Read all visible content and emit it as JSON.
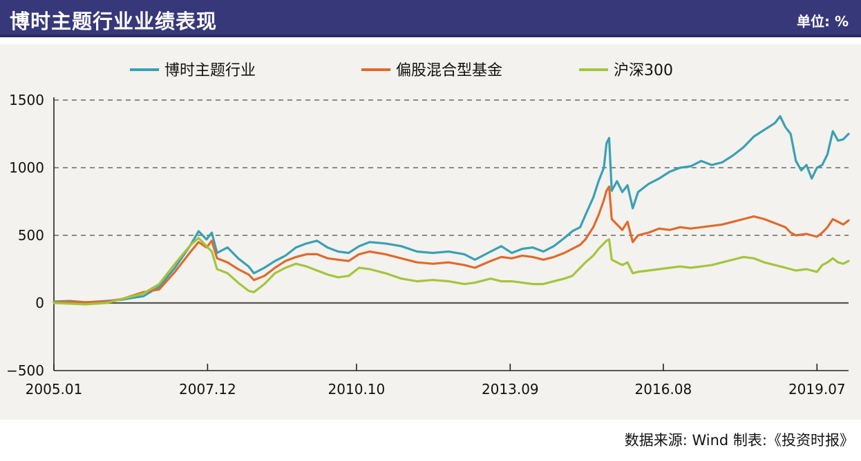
{
  "header": {
    "title": "博时主题行业业绩表现",
    "unit": "单位: %"
  },
  "footer": {
    "source": "数据来源: Wind  制表:《投资时报》"
  },
  "chart_data": {
    "type": "line",
    "title": "",
    "xlabel": "",
    "ylabel": "",
    "ylim": [
      -500,
      1500
    ],
    "yticks": [
      -500,
      0,
      500,
      1000,
      1500
    ],
    "xlim": [
      2005.0,
      2020.1
    ],
    "xticks": [
      {
        "label": "2005.01",
        "x": 2005.0
      },
      {
        "label": "2007.12",
        "x": 2007.92
      },
      {
        "label": "2010.10",
        "x": 2010.75
      },
      {
        "label": "2013.09",
        "x": 2013.67
      },
      {
        "label": "2016.08",
        "x": 2016.58
      },
      {
        "label": "2019.07",
        "x": 2019.5
      }
    ],
    "grid": "horizontal-dashed",
    "legend": "top",
    "series": [
      {
        "name": "博时主题行业",
        "color": "#3aa0b4",
        "points": [
          [
            2005.0,
            10
          ],
          [
            2005.3,
            15
          ],
          [
            2005.6,
            5
          ],
          [
            2006.0,
            15
          ],
          [
            2006.3,
            25
          ],
          [
            2006.7,
            50
          ],
          [
            2007.0,
            120
          ],
          [
            2007.3,
            260
          ],
          [
            2007.6,
            430
          ],
          [
            2007.75,
            530
          ],
          [
            2007.9,
            470
          ],
          [
            2008.0,
            520
          ],
          [
            2008.1,
            370
          ],
          [
            2008.3,
            410
          ],
          [
            2008.5,
            330
          ],
          [
            2008.7,
            270
          ],
          [
            2008.8,
            220
          ],
          [
            2009.0,
            260
          ],
          [
            2009.2,
            310
          ],
          [
            2009.4,
            350
          ],
          [
            2009.6,
            410
          ],
          [
            2009.8,
            440
          ],
          [
            2010.0,
            460
          ],
          [
            2010.2,
            410
          ],
          [
            2010.4,
            380
          ],
          [
            2010.6,
            370
          ],
          [
            2010.8,
            420
          ],
          [
            2011.0,
            450
          ],
          [
            2011.3,
            440
          ],
          [
            2011.6,
            420
          ],
          [
            2011.9,
            380
          ],
          [
            2012.2,
            370
          ],
          [
            2012.5,
            380
          ],
          [
            2012.8,
            360
          ],
          [
            2013.0,
            320
          ],
          [
            2013.3,
            380
          ],
          [
            2013.5,
            420
          ],
          [
            2013.7,
            370
          ],
          [
            2013.9,
            400
          ],
          [
            2014.1,
            410
          ],
          [
            2014.3,
            380
          ],
          [
            2014.5,
            420
          ],
          [
            2014.7,
            480
          ],
          [
            2014.85,
            530
          ],
          [
            2015.0,
            560
          ],
          [
            2015.1,
            650
          ],
          [
            2015.25,
            780
          ],
          [
            2015.35,
            900
          ],
          [
            2015.45,
            1000
          ],
          [
            2015.5,
            1180
          ],
          [
            2015.55,
            1220
          ],
          [
            2015.6,
            830
          ],
          [
            2015.7,
            900
          ],
          [
            2015.8,
            820
          ],
          [
            2015.9,
            870
          ],
          [
            2016.0,
            700
          ],
          [
            2016.1,
            820
          ],
          [
            2016.3,
            880
          ],
          [
            2016.5,
            920
          ],
          [
            2016.7,
            970
          ],
          [
            2016.9,
            1000
          ],
          [
            2017.1,
            1010
          ],
          [
            2017.3,
            1050
          ],
          [
            2017.5,
            1020
          ],
          [
            2017.7,
            1040
          ],
          [
            2017.9,
            1090
          ],
          [
            2018.1,
            1150
          ],
          [
            2018.3,
            1230
          ],
          [
            2018.5,
            1280
          ],
          [
            2018.7,
            1330
          ],
          [
            2018.8,
            1380
          ],
          [
            2018.9,
            1300
          ],
          [
            2019.0,
            1250
          ],
          [
            2019.1,
            1050
          ],
          [
            2019.2,
            980
          ],
          [
            2019.3,
            1020
          ],
          [
            2019.4,
            920
          ],
          [
            2019.5,
            1000
          ],
          [
            2019.6,
            1020
          ],
          [
            2019.7,
            1100
          ],
          [
            2019.8,
            1270
          ],
          [
            2019.9,
            1200
          ],
          [
            2020.0,
            1210
          ],
          [
            2020.1,
            1250
          ]
        ]
      },
      {
        "name": "偏股混合型基金",
        "color": "#e06a2c",
        "points": [
          [
            2005.0,
            5
          ],
          [
            2005.3,
            10
          ],
          [
            2005.6,
            5
          ],
          [
            2006.0,
            10
          ],
          [
            2006.3,
            30
          ],
          [
            2006.7,
            80
          ],
          [
            2007.0,
            100
          ],
          [
            2007.3,
            230
          ],
          [
            2007.6,
            380
          ],
          [
            2007.75,
            450
          ],
          [
            2007.9,
            410
          ],
          [
            2008.0,
            460
          ],
          [
            2008.1,
            330
          ],
          [
            2008.3,
            300
          ],
          [
            2008.5,
            250
          ],
          [
            2008.7,
            210
          ],
          [
            2008.8,
            170
          ],
          [
            2009.0,
            200
          ],
          [
            2009.2,
            260
          ],
          [
            2009.4,
            310
          ],
          [
            2009.6,
            340
          ],
          [
            2009.8,
            360
          ],
          [
            2010.0,
            360
          ],
          [
            2010.2,
            330
          ],
          [
            2010.4,
            320
          ],
          [
            2010.6,
            310
          ],
          [
            2010.8,
            360
          ],
          [
            2011.0,
            380
          ],
          [
            2011.3,
            360
          ],
          [
            2011.6,
            330
          ],
          [
            2011.9,
            300
          ],
          [
            2012.2,
            290
          ],
          [
            2012.5,
            300
          ],
          [
            2012.8,
            280
          ],
          [
            2013.0,
            260
          ],
          [
            2013.3,
            310
          ],
          [
            2013.5,
            340
          ],
          [
            2013.7,
            330
          ],
          [
            2013.9,
            350
          ],
          [
            2014.1,
            340
          ],
          [
            2014.3,
            320
          ],
          [
            2014.5,
            340
          ],
          [
            2014.7,
            370
          ],
          [
            2014.85,
            400
          ],
          [
            2015.0,
            430
          ],
          [
            2015.1,
            470
          ],
          [
            2015.25,
            560
          ],
          [
            2015.35,
            650
          ],
          [
            2015.45,
            760
          ],
          [
            2015.5,
            830
          ],
          [
            2015.55,
            860
          ],
          [
            2015.6,
            620
          ],
          [
            2015.7,
            580
          ],
          [
            2015.8,
            540
          ],
          [
            2015.9,
            600
          ],
          [
            2016.0,
            450
          ],
          [
            2016.1,
            500
          ],
          [
            2016.3,
            520
          ],
          [
            2016.5,
            550
          ],
          [
            2016.7,
            540
          ],
          [
            2016.9,
            560
          ],
          [
            2017.1,
            550
          ],
          [
            2017.3,
            560
          ],
          [
            2017.5,
            570
          ],
          [
            2017.7,
            580
          ],
          [
            2017.9,
            600
          ],
          [
            2018.1,
            620
          ],
          [
            2018.3,
            640
          ],
          [
            2018.5,
            620
          ],
          [
            2018.7,
            590
          ],
          [
            2018.9,
            560
          ],
          [
            2019.0,
            520
          ],
          [
            2019.1,
            500
          ],
          [
            2019.3,
            510
          ],
          [
            2019.5,
            490
          ],
          [
            2019.6,
            520
          ],
          [
            2019.7,
            560
          ],
          [
            2019.8,
            620
          ],
          [
            2019.9,
            600
          ],
          [
            2020.0,
            580
          ],
          [
            2020.1,
            610
          ]
        ]
      },
      {
        "name": "沪深300",
        "color": "#a5c43c",
        "points": [
          [
            2005.0,
            0
          ],
          [
            2005.3,
            -5
          ],
          [
            2005.6,
            -10
          ],
          [
            2006.0,
            0
          ],
          [
            2006.3,
            30
          ],
          [
            2006.7,
            70
          ],
          [
            2007.0,
            140
          ],
          [
            2007.3,
            290
          ],
          [
            2007.6,
            430
          ],
          [
            2007.75,
            480
          ],
          [
            2007.9,
            420
          ],
          [
            2008.0,
            380
          ],
          [
            2008.1,
            250
          ],
          [
            2008.3,
            220
          ],
          [
            2008.5,
            150
          ],
          [
            2008.7,
            90
          ],
          [
            2008.8,
            80
          ],
          [
            2009.0,
            140
          ],
          [
            2009.2,
            220
          ],
          [
            2009.4,
            260
          ],
          [
            2009.6,
            290
          ],
          [
            2009.8,
            270
          ],
          [
            2010.0,
            240
          ],
          [
            2010.2,
            210
          ],
          [
            2010.4,
            190
          ],
          [
            2010.6,
            200
          ],
          [
            2010.8,
            260
          ],
          [
            2011.0,
            250
          ],
          [
            2011.3,
            220
          ],
          [
            2011.6,
            180
          ],
          [
            2011.9,
            160
          ],
          [
            2012.2,
            170
          ],
          [
            2012.5,
            160
          ],
          [
            2012.8,
            140
          ],
          [
            2013.0,
            150
          ],
          [
            2013.3,
            180
          ],
          [
            2013.5,
            160
          ],
          [
            2013.7,
            160
          ],
          [
            2013.9,
            150
          ],
          [
            2014.1,
            140
          ],
          [
            2014.3,
            140
          ],
          [
            2014.5,
            160
          ],
          [
            2014.7,
            180
          ],
          [
            2014.85,
            200
          ],
          [
            2015.0,
            260
          ],
          [
            2015.1,
            300
          ],
          [
            2015.25,
            350
          ],
          [
            2015.35,
            400
          ],
          [
            2015.45,
            440
          ],
          [
            2015.5,
            460
          ],
          [
            2015.55,
            470
          ],
          [
            2015.6,
            320
          ],
          [
            2015.7,
            300
          ],
          [
            2015.8,
            280
          ],
          [
            2015.9,
            300
          ],
          [
            2016.0,
            220
          ],
          [
            2016.1,
            230
          ],
          [
            2016.3,
            240
          ],
          [
            2016.5,
            250
          ],
          [
            2016.7,
            260
          ],
          [
            2016.9,
            270
          ],
          [
            2017.1,
            260
          ],
          [
            2017.3,
            270
          ],
          [
            2017.5,
            280
          ],
          [
            2017.7,
            300
          ],
          [
            2017.9,
            320
          ],
          [
            2018.1,
            340
          ],
          [
            2018.3,
            330
          ],
          [
            2018.5,
            300
          ],
          [
            2018.7,
            280
          ],
          [
            2018.9,
            260
          ],
          [
            2019.0,
            250
          ],
          [
            2019.1,
            240
          ],
          [
            2019.3,
            250
          ],
          [
            2019.5,
            230
          ],
          [
            2019.6,
            280
          ],
          [
            2019.7,
            300
          ],
          [
            2019.8,
            330
          ],
          [
            2019.9,
            300
          ],
          [
            2020.0,
            290
          ],
          [
            2020.1,
            310
          ]
        ]
      }
    ]
  }
}
